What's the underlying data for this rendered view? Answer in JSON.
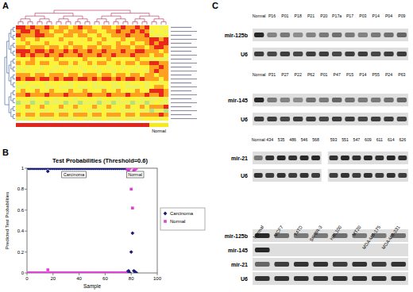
{
  "panel_labels": [
    "A",
    "B",
    "C"
  ],
  "heatmap": {
    "type": "heatmap",
    "cells": [
      [
        4,
        4,
        3,
        4,
        3,
        3,
        4,
        3,
        2,
        3,
        3,
        2,
        3,
        4,
        3,
        3,
        2,
        2,
        3,
        3,
        2,
        3,
        4,
        3,
        3,
        4,
        3,
        4,
        2,
        2,
        1,
        2
      ],
      [
        3,
        4,
        4,
        3,
        4,
        3,
        3,
        2,
        3,
        3,
        2,
        3,
        3,
        3,
        2,
        3,
        3,
        2,
        2,
        3,
        3,
        4,
        3,
        3,
        4,
        3,
        4,
        3,
        1,
        2,
        2,
        1
      ],
      [
        4,
        3,
        3,
        3,
        4,
        4,
        3,
        3,
        2,
        2,
        3,
        3,
        2,
        3,
        3,
        2,
        2,
        3,
        2,
        2,
        3,
        3,
        3,
        4,
        3,
        3,
        3,
        4,
        2,
        1,
        1,
        2
      ],
      [
        2,
        3,
        2,
        2,
        3,
        2,
        2,
        2,
        2,
        3,
        2,
        2,
        2,
        2,
        2,
        3,
        2,
        2,
        3,
        2,
        2,
        2,
        3,
        2,
        2,
        3,
        3,
        3,
        4,
        4,
        3,
        4
      ],
      [
        2,
        2,
        3,
        2,
        2,
        2,
        3,
        2,
        2,
        2,
        2,
        3,
        2,
        2,
        2,
        2,
        2,
        3,
        2,
        2,
        2,
        3,
        2,
        2,
        3,
        2,
        2,
        3,
        4,
        3,
        4,
        4
      ],
      [
        3,
        3,
        2,
        3,
        3,
        3,
        2,
        3,
        3,
        2,
        3,
        2,
        3,
        3,
        2,
        3,
        3,
        2,
        3,
        3,
        2,
        3,
        3,
        3,
        2,
        3,
        3,
        2,
        3,
        4,
        4,
        3
      ],
      [
        4,
        4,
        4,
        3,
        4,
        4,
        3,
        4,
        3,
        3,
        4,
        3,
        4,
        3,
        3,
        4,
        3,
        3,
        4,
        3,
        3,
        3,
        4,
        3,
        3,
        4,
        4,
        3,
        3,
        3,
        2,
        3
      ],
      [
        3,
        4,
        3,
        4,
        3,
        3,
        4,
        3,
        3,
        4,
        3,
        3,
        3,
        4,
        3,
        3,
        3,
        4,
        3,
        3,
        4,
        3,
        3,
        3,
        4,
        3,
        3,
        3,
        2,
        3,
        3,
        2
      ],
      [
        2,
        2,
        2,
        3,
        2,
        2,
        2,
        2,
        3,
        2,
        2,
        2,
        2,
        2,
        3,
        2,
        2,
        2,
        2,
        3,
        2,
        2,
        2,
        2,
        2,
        3,
        2,
        2,
        1,
        2,
        1,
        1
      ],
      [
        3,
        2,
        3,
        3,
        2,
        3,
        3,
        2,
        2,
        3,
        3,
        2,
        3,
        2,
        2,
        3,
        2,
        3,
        3,
        2,
        2,
        3,
        2,
        3,
        3,
        2,
        3,
        3,
        4,
        4,
        3,
        3
      ],
      [
        1,
        2,
        1,
        2,
        2,
        1,
        2,
        2,
        1,
        2,
        2,
        1,
        2,
        1,
        2,
        2,
        1,
        2,
        2,
        1,
        2,
        2,
        1,
        2,
        2,
        1,
        2,
        2,
        3,
        3,
        4,
        3
      ],
      [
        2,
        1,
        2,
        2,
        1,
        2,
        2,
        1,
        2,
        2,
        1,
        2,
        2,
        2,
        1,
        2,
        2,
        1,
        2,
        2,
        1,
        2,
        2,
        2,
        1,
        2,
        2,
        1,
        3,
        4,
        3,
        3
      ],
      [
        3,
        3,
        3,
        2,
        3,
        3,
        2,
        3,
        3,
        3,
        2,
        3,
        3,
        2,
        3,
        3,
        3,
        2,
        3,
        3,
        2,
        3,
        3,
        2,
        3,
        3,
        2,
        3,
        3,
        2,
        3,
        3
      ],
      [
        4,
        3,
        4,
        4,
        3,
        4,
        4,
        3,
        4,
        3,
        4,
        4,
        3,
        4,
        4,
        3,
        4,
        3,
        4,
        4,
        3,
        4,
        3,
        4,
        4,
        3,
        4,
        3,
        3,
        3,
        2,
        3
      ],
      [
        2,
        2,
        1,
        2,
        2,
        2,
        1,
        2,
        2,
        2,
        2,
        1,
        2,
        2,
        2,
        2,
        1,
        2,
        2,
        2,
        1,
        2,
        2,
        1,
        2,
        2,
        2,
        1,
        2,
        2,
        1,
        2
      ],
      [
        1,
        1,
        2,
        1,
        1,
        2,
        1,
        1,
        2,
        1,
        1,
        1,
        2,
        1,
        1,
        2,
        1,
        1,
        1,
        2,
        1,
        1,
        2,
        1,
        1,
        1,
        2,
        1,
        2,
        3,
        3,
        2
      ],
      [
        2,
        3,
        2,
        2,
        3,
        2,
        2,
        3,
        2,
        2,
        2,
        3,
        2,
        2,
        3,
        2,
        2,
        2,
        3,
        2,
        2,
        3,
        2,
        2,
        2,
        3,
        2,
        2,
        4,
        4,
        4,
        3
      ],
      [
        3,
        3,
        4,
        3,
        3,
        3,
        4,
        3,
        3,
        3,
        4,
        3,
        3,
        3,
        3,
        4,
        3,
        3,
        3,
        4,
        3,
        3,
        3,
        4,
        3,
        3,
        3,
        4,
        3,
        3,
        4,
        3
      ],
      [
        2,
        2,
        2,
        1,
        2,
        2,
        2,
        2,
        1,
        2,
        2,
        2,
        1,
        2,
        2,
        2,
        2,
        1,
        2,
        2,
        2,
        1,
        2,
        2,
        2,
        2,
        1,
        2,
        1,
        1,
        2,
        1
      ],
      [
        0,
        1,
        1,
        0,
        1,
        1,
        0,
        1,
        1,
        1,
        0,
        1,
        1,
        0,
        1,
        1,
        1,
        0,
        1,
        1,
        0,
        1,
        1,
        1,
        0,
        1,
        1,
        0,
        1,
        2,
        1,
        1
      ],
      [
        2,
        2,
        3,
        2,
        2,
        3,
        2,
        2,
        2,
        3,
        2,
        2,
        3,
        2,
        2,
        2,
        3,
        2,
        2,
        3,
        2,
        2,
        2,
        3,
        2,
        2,
        3,
        2,
        3,
        3,
        3,
        4
      ],
      [
        1,
        2,
        1,
        1,
        2,
        1,
        1,
        2,
        1,
        1,
        1,
        2,
        1,
        1,
        2,
        1,
        1,
        1,
        2,
        1,
        1,
        2,
        1,
        1,
        1,
        2,
        1,
        1,
        0,
        1,
        1,
        0
      ],
      [
        3,
        2,
        3,
        3,
        2,
        3,
        3,
        3,
        2,
        3,
        3,
        2,
        3,
        3,
        3,
        2,
        3,
        3,
        2,
        3,
        3,
        3,
        2,
        3,
        3,
        2,
        3,
        3,
        3,
        3,
        4,
        3
      ],
      [
        1,
        1,
        1,
        2,
        1,
        1,
        1,
        1,
        2,
        1,
        1,
        1,
        1,
        2,
        1,
        1,
        1,
        1,
        2,
        1,
        1,
        1,
        2,
        1,
        1,
        1,
        1,
        2,
        2,
        2,
        1,
        2
      ]
    ],
    "groups": [
      {
        "count": 28,
        "color": "#e3261b"
      },
      {
        "count": 4,
        "color": "#f4ea1c",
        "label": "Normal"
      }
    ]
  },
  "chart_data": {
    "type": "scatter",
    "title": "Test Probabilities (Threshold=0.6)",
    "x_label": "Sample",
    "y_label": "Predicted Test Probabilities",
    "annotations": [
      "Carcinoma",
      "Normal"
    ],
    "xlim": [
      0,
      100
    ],
    "ylim": [
      0,
      1
    ],
    "xticks": [
      0,
      20,
      40,
      60,
      80,
      100
    ],
    "yticks": [
      0,
      0.2,
      0.4,
      0.6,
      0.8,
      1
    ],
    "grid": false,
    "legend": "right",
    "x": [
      1,
      2,
      3,
      4,
      5,
      6,
      7,
      8,
      9,
      10,
      11,
      12,
      13,
      14,
      15,
      16,
      17,
      18,
      19,
      20,
      21,
      22,
      23,
      24,
      25,
      26,
      27,
      28,
      29,
      30,
      31,
      32,
      33,
      34,
      35,
      36,
      37,
      38,
      39,
      40,
      41,
      42,
      43,
      44,
      45,
      46,
      47,
      48,
      49,
      50,
      51,
      52,
      53,
      54,
      55,
      56,
      57,
      58,
      59,
      60,
      61,
      62,
      63,
      64,
      65,
      66,
      67,
      68,
      69,
      70,
      71,
      72,
      73,
      74,
      75,
      76,
      77,
      78,
      79,
      80,
      81,
      82,
      83,
      84
    ],
    "series": [
      {
        "name": "Carcinoma",
        "color": "#1c1c78",
        "marker": "diamond",
        "values": [
          1,
          1,
          1,
          1,
          1,
          1,
          1,
          1,
          1,
          1,
          1,
          1,
          1,
          1,
          1,
          0.97,
          1,
          1,
          1,
          1,
          1,
          1,
          1,
          1,
          1,
          1,
          1,
          1,
          1,
          1,
          1,
          1,
          1,
          1,
          1,
          1,
          1,
          1,
          1,
          1,
          1,
          1,
          1,
          1,
          1,
          1,
          1,
          1,
          1,
          1,
          1,
          1,
          1,
          1,
          1,
          1,
          1,
          1,
          1,
          1,
          1,
          1,
          1,
          1,
          1,
          1,
          1,
          1,
          1,
          1,
          1,
          1,
          1,
          1,
          1,
          1,
          0.01,
          0.02,
          0,
          0.2,
          0.38,
          0.02,
          0.01,
          0
        ]
      },
      {
        "name": "Normal",
        "color": "#e040d8",
        "marker": "square",
        "values": [
          0,
          0,
          0,
          0,
          0,
          0,
          0,
          0,
          0,
          0,
          0,
          0,
          0,
          0,
          0,
          0.03,
          0,
          0,
          0,
          0,
          0,
          0,
          0,
          0,
          0,
          0,
          0,
          0,
          0,
          0,
          0,
          0,
          0,
          0,
          0,
          0,
          0,
          0,
          0,
          0,
          0,
          0,
          0,
          0,
          0,
          0,
          0,
          0,
          0,
          0,
          0,
          0,
          0,
          0,
          0,
          0,
          0,
          0,
          0,
          0,
          0,
          0,
          0,
          0,
          0,
          0,
          0,
          0,
          0,
          0,
          0,
          0,
          0,
          0,
          0,
          0,
          0.99,
          0.98,
          1,
          0.8,
          0.62,
          0.98,
          0.99,
          1
        ]
      }
    ]
  },
  "blots": [
    {
      "row_labels": [
        "mir-125b",
        "U6"
      ],
      "groups": [
        {
          "lanes": [
            "Normal",
            "P16",
            "P01",
            "P18",
            "P21",
            "P20",
            "P17a",
            "P17",
            "P03",
            "P14",
            "P04",
            "P09"
          ],
          "intensities": [
            [
              0.9,
              0.45,
              0.5,
              0.4,
              0.45,
              0.5,
              0.55,
              0.5,
              0.45,
              0.5,
              0.55,
              0.6
            ],
            [
              0.8,
              0.75,
              0.8,
              0.75,
              0.8,
              0.8,
              0.75,
              0.8,
              0.8,
              0.75,
              0.8,
              0.8
            ]
          ]
        }
      ]
    },
    {
      "row_labels": [
        "mir-145",
        "U6"
      ],
      "groups": [
        {
          "lanes": [
            "Normal",
            "P31",
            "P27",
            "P22",
            "P62",
            "P01",
            "P47",
            "P15",
            "P14",
            "P55",
            "P24",
            "P63"
          ],
          "intensities": [
            [
              0.9,
              0.5,
              0.45,
              0.4,
              0.55,
              0.5,
              0.6,
              0.55,
              0.5,
              0.5,
              0.55,
              0.6
            ],
            [
              0.8,
              0.8,
              0.75,
              0.8,
              0.8,
              0.75,
              0.8,
              0.8,
              0.75,
              0.8,
              0.8,
              0.75
            ]
          ]
        }
      ]
    },
    {
      "row_labels": [
        "mir-21",
        "U6"
      ],
      "groups": [
        {
          "lanes": [
            "Normal",
            "434",
            "535",
            "486",
            "546",
            "568"
          ],
          "intensities": [
            [
              0.5,
              0.85,
              0.9,
              0.85,
              0.9,
              0.9
            ],
            [
              0.85,
              0.8,
              0.85,
              0.8,
              0.85,
              0.8
            ]
          ]
        },
        {
          "lanes": [
            "593",
            "551",
            "547",
            "609",
            "611",
            "614",
            "626"
          ],
          "intensities": [
            [
              0.85,
              0.9,
              0.85,
              0.9,
              0.85,
              0.9,
              0.85
            ],
            [
              0.8,
              0.85,
              0.8,
              0.85,
              0.8,
              0.85,
              0.8
            ]
          ]
        }
      ]
    },
    {
      "row_labels": [
        "mir-125b",
        "mir-145",
        "mir-21",
        "U6"
      ],
      "groups": [
        {
          "lanes": [
            "Normal",
            "MCF7",
            "T4TD",
            "SK-BR-3",
            "HBL100",
            "MT20",
            "MDA-MB-175",
            "MDA-MB-231"
          ],
          "intensities": [
            [
              0.9,
              0.55,
              0.5,
              0.5,
              0.55,
              0.5,
              0.5,
              0.55
            ],
            [
              0.9,
              0,
              0,
              0,
              0,
              0,
              0,
              0
            ],
            [
              0.6,
              0.8,
              0.85,
              0.85,
              0.8,
              0.85,
              0.8,
              0.85
            ],
            [
              0.85,
              0.85,
              0.85,
              0.85,
              0.85,
              0.85,
              0.85,
              0.85
            ]
          ]
        }
      ]
    }
  ]
}
